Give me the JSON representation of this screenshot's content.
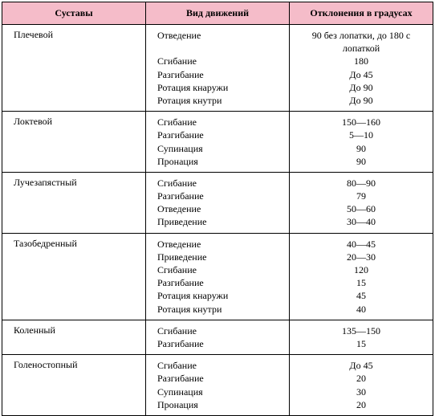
{
  "headers": {
    "joint": "Суставы",
    "movement": "Вид движений",
    "degrees": "Отклонения в градусах"
  },
  "rows": [
    {
      "joint": "Плечевой",
      "movements": [
        "Отведение",
        "",
        "Сгибание",
        "Разгибание",
        "Ротация кнаружи",
        "Ротация кнутри"
      ],
      "degrees": [
        "90 без лопатки, до 180 с",
        "лопаткой",
        "180",
        "До 45",
        "До 90",
        "До 90"
      ]
    },
    {
      "joint": "Локтевой",
      "movements": [
        "Сгибание",
        "Разгибание",
        "Супинация",
        "Пронация"
      ],
      "degrees": [
        "150—160",
        "5—10",
        "90",
        "90"
      ]
    },
    {
      "joint": "Лучезапястный",
      "movements": [
        "Сгибание",
        "Разгибание",
        "Отведение",
        "Приведение"
      ],
      "degrees": [
        "80—90",
        "79",
        "50—60",
        "30—40"
      ]
    },
    {
      "joint": "Тазобедренный",
      "movements": [
        "Отведение",
        "Приведение",
        "Сгибание",
        "Разгибание",
        "Ротация кнаружи",
        "Ротация кнутри"
      ],
      "degrees": [
        "40—45",
        "20—30",
        "120",
        "15",
        "45",
        "40"
      ]
    },
    {
      "joint": "Коленный",
      "movements": [
        "Сгибание",
        "Разгибание"
      ],
      "degrees": [
        "135—150",
        "15"
      ]
    },
    {
      "joint": "Голеностопный",
      "movements": [
        "Сгибание",
        "Разгибание",
        "Супинация",
        "Пронация"
      ],
      "degrees": [
        "До 45",
        "20",
        "30",
        "20"
      ]
    }
  ],
  "styling": {
    "header_bg": "#f5bcc9",
    "border_color": "#000000",
    "font_family": "Times New Roman",
    "header_fontsize": 12,
    "cell_fontsize": 12,
    "col_widths_pct": [
      33,
      34,
      33
    ]
  }
}
